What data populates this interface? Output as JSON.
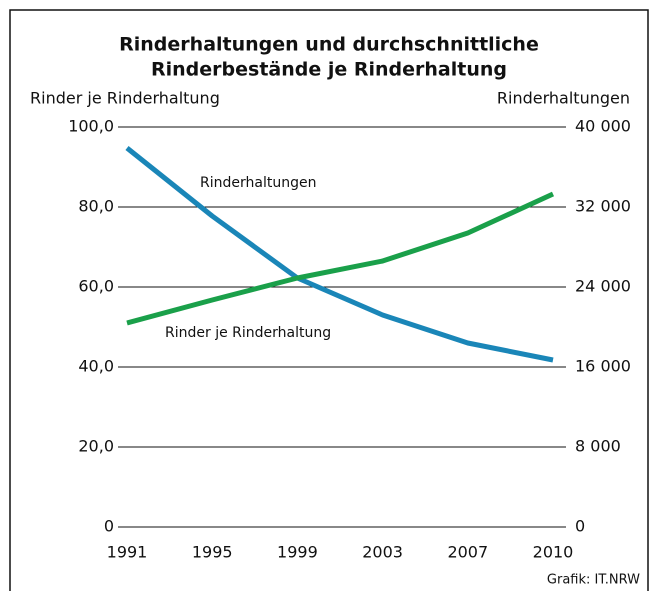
{
  "chart_data": {
    "type": "line",
    "title": [
      "Rinderhaltungen und durchschnittliche",
      "Rinderbestände je Rinderhaltung"
    ],
    "y_label": "Rinder je Rinderhaltung",
    "y2_label": "Rinderhaltungen",
    "source": "Grafik: IT.NRW",
    "categories": [
      "1991",
      "1995",
      "1999",
      "2003",
      "2007",
      "2010"
    ],
    "series": [
      {
        "name": "Rinderhaltungen",
        "color": "#1a86b8",
        "axis": "y2",
        "values": [
          37900,
          31100,
          24900,
          21200,
          18400,
          16700
        ]
      },
      {
        "name": "Rinder je Rinderhaltung",
        "color": "#1aa04a",
        "values": [
          51,
          56.75,
          62.25,
          66.5,
          73.5,
          83.25
        ]
      }
    ],
    "ylim": [
      0,
      100
    ],
    "yticks": [
      0,
      {
        "value": 20,
        "label": "20,0"
      },
      {
        "value": 40,
        "label": "40,0"
      },
      {
        "value": 60,
        "label": "60,0"
      },
      {
        "value": 80,
        "label": "80,0"
      },
      {
        "value": 100,
        "label": "100,0"
      }
    ],
    "y2lim": [
      0,
      40000
    ],
    "y2ticks": [
      0,
      {
        "value": 8000,
        "label": "8 000"
      },
      {
        "value": 16000,
        "label": "16 000"
      },
      {
        "value": 24000,
        "label": "24 000"
      },
      {
        "value": 32000,
        "label": "32 000"
      },
      {
        "value": 40000,
        "label": "40 000"
      }
    ],
    "grid": true
  }
}
